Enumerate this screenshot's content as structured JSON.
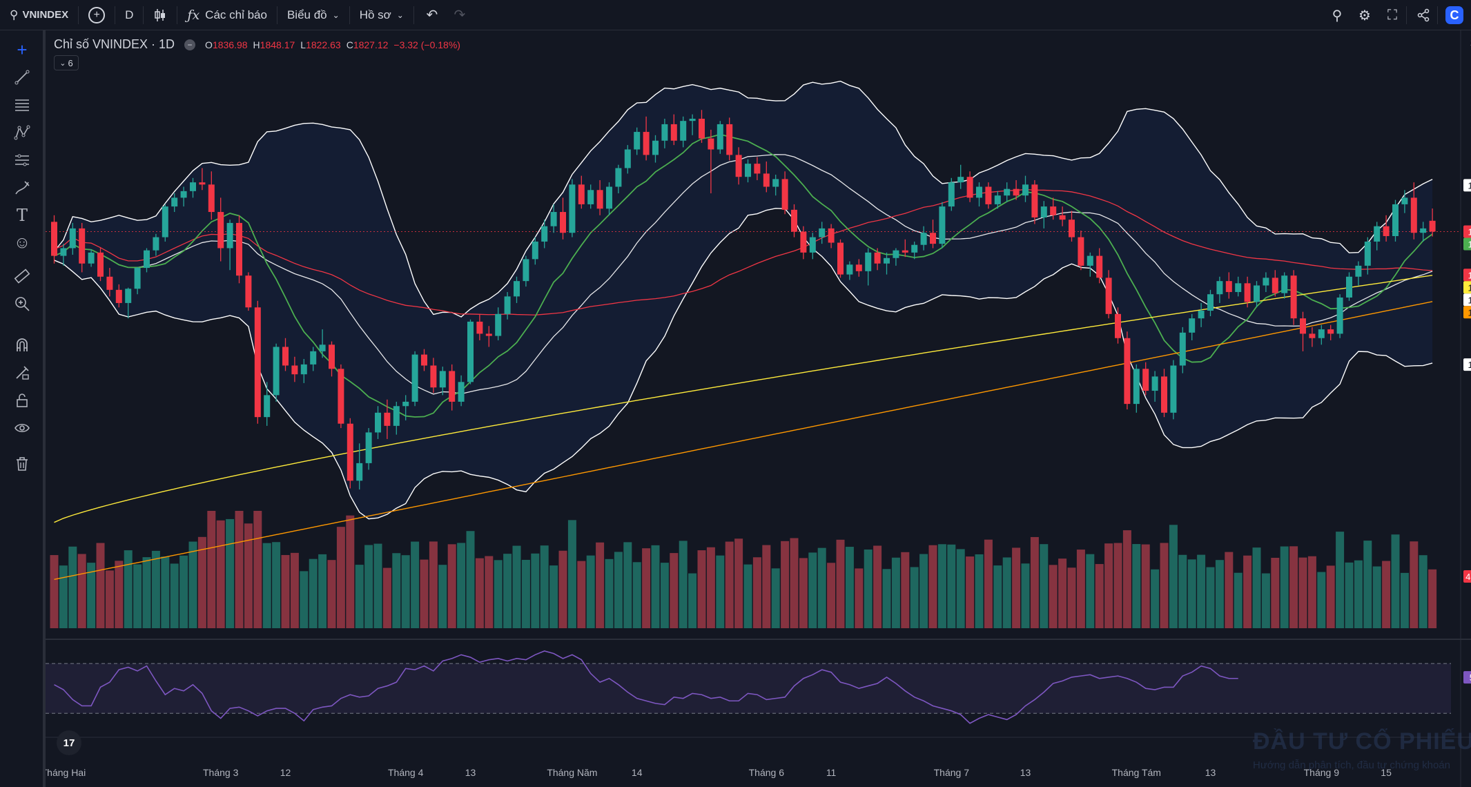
{
  "toolbar": {
    "symbol": "VNINDEX",
    "interval": "D",
    "indicators_label": "Các chỉ báo",
    "chart_menu_label": "Biểu đồ",
    "profile_label": "Hồ sơ"
  },
  "legend": {
    "title": "Chỉ số VNINDEX · 1D",
    "open_key": "O",
    "open_val": "1836.98",
    "high_key": "H",
    "high_val": "1848.17",
    "low_key": "L",
    "low_val": "1822.63",
    "close_key": "C",
    "close_val": "1827.12",
    "change": "−3.32 (−0.18%)",
    "collapse_count": "6"
  },
  "watermark": {
    "title": "ĐẦU TƯ CỔ PHIẾU",
    "subtitle": "Hướng dẫn phân tích, đầu tư chứng khoán"
  },
  "colors": {
    "up": "#26a69a",
    "down": "#f23645",
    "bg": "#131722",
    "ma_fast": "#4caf50",
    "ma_mid": "#f23645",
    "ma_slow": "#ffeb3b",
    "ma_long": "#ff9800",
    "band": "#ffffff",
    "rsi": "#7e57c2"
  },
  "icons": [
    "search-icon",
    "plus-circle-icon",
    "candles-icon",
    "fx-icon",
    "undo-icon",
    "redo-icon",
    "zoom-icon",
    "gear-icon",
    "fullscreen-icon",
    "share-icon",
    "crosshair-icon",
    "trendline-icon",
    "fib-icon",
    "pattern-icon",
    "measure-icon",
    "brush-icon",
    "text-icon",
    "emoji-icon",
    "ruler-icon",
    "zoom-in-icon",
    "magnet-icon",
    "lock-draw-icon",
    "lock-icon",
    "eye-icon",
    "trash-icon"
  ],
  "chart_data": {
    "type": "candlestick",
    "price_axis": {
      "ticks": [
        2000,
        1975,
        1950,
        1925,
        1900,
        1875,
        1850,
        1825,
        1800,
        1775,
        1750,
        1725,
        1700,
        1675,
        1650,
        1625,
        1600,
        1575,
        1550,
        1525,
        1500,
        1475
      ],
      "range": [
        1463,
        2003
      ]
    },
    "price_labels": [
      {
        "text": "1869.35",
        "value": 1869.35,
        "bg": "#ffffff",
        "fg": "#131722"
      },
      {
        "text": "1827.12",
        "value": 1827.12,
        "bg": "#f23645",
        "fg": "#ffffff"
      },
      {
        "text": "1822.52",
        "value": 1822.52,
        "bg": "#4caf50",
        "fg": "#ffffff"
      },
      {
        "text": "1787.59",
        "value": 1787.59,
        "bg": "#f23645",
        "fg": "#ffffff"
      },
      {
        "text": "1787.27",
        "value": 1787.27,
        "bg": "#ffeb3b",
        "fg": "#131722"
      },
      {
        "text": "1783.40",
        "value": 1783.4,
        "bg": "#ffffff",
        "fg": "#131722"
      },
      {
        "text": "1763.32",
        "value": 1763.32,
        "bg": "#ff9800",
        "fg": "#131722"
      },
      {
        "text": "1705.83",
        "value": 1705.83,
        "bg": "#ffffff",
        "fg": "#131722"
      }
    ],
    "volume_label": "467.329M",
    "rsi": {
      "ticks": [
        40,
        20
      ],
      "range": [
        13,
        85
      ],
      "upper": 70,
      "lower": 30,
      "value_label": "58.92",
      "values": [
        53,
        49,
        41,
        36,
        36,
        51,
        55,
        65,
        67,
        64,
        68,
        56,
        45,
        50,
        48,
        53,
        46,
        32,
        26,
        34,
        35,
        32,
        28,
        32,
        34,
        34,
        30,
        24,
        33,
        35,
        36,
        42,
        45,
        43,
        44,
        50,
        52,
        55,
        66,
        65,
        68,
        64,
        72,
        74,
        77,
        75,
        71,
        73,
        74,
        72,
        74,
        73,
        77,
        80,
        78,
        74,
        77,
        73,
        62,
        55,
        58,
        53,
        47,
        42,
        40,
        38,
        37,
        43,
        42,
        46,
        45,
        42,
        43,
        40,
        40,
        46,
        45,
        41,
        42,
        43,
        52,
        58,
        61,
        65,
        63,
        55,
        53,
        50,
        52,
        54,
        59,
        54,
        48,
        43,
        40,
        36,
        34,
        32,
        29,
        22,
        26,
        29,
        27,
        25,
        29,
        36,
        41,
        47,
        54,
        56,
        59,
        60,
        61,
        58,
        59,
        60,
        58,
        55,
        50,
        49,
        51,
        51,
        60,
        63,
        68,
        66,
        60,
        58,
        58
      ],
      "last": 58.92
    },
    "x_ticks": [
      {
        "label": "Tháng Hai",
        "index": 1
      },
      {
        "label": "Tháng 3",
        "index": 18
      },
      {
        "label": "12",
        "index": 25
      },
      {
        "label": "Tháng 4",
        "index": 38
      },
      {
        "label": "13",
        "index": 45
      },
      {
        "label": "Tháng Năm",
        "index": 56
      },
      {
        "label": "14",
        "index": 63
      },
      {
        "label": "Tháng 6",
        "index": 77
      },
      {
        "label": "11",
        "index": 84
      },
      {
        "label": "Tháng 7",
        "index": 97
      },
      {
        "label": "13",
        "index": 105
      },
      {
        "label": "Tháng Tám",
        "index": 117
      },
      {
        "label": "13",
        "index": 125
      },
      {
        "label": "Tháng 9",
        "index": 137
      },
      {
        "label": "15",
        "index": 144
      }
    ],
    "candles": [
      {
        "o": 1836,
        "h": 1842,
        "l": 1798,
        "c": 1805
      },
      {
        "o": 1805,
        "h": 1816,
        "l": 1796,
        "c": 1812
      },
      {
        "o": 1812,
        "h": 1835,
        "l": 1806,
        "c": 1830
      },
      {
        "o": 1830,
        "h": 1835,
        "l": 1790,
        "c": 1798
      },
      {
        "o": 1798,
        "h": 1811,
        "l": 1795,
        "c": 1808
      },
      {
        "o": 1808,
        "h": 1813,
        "l": 1782,
        "c": 1786
      },
      {
        "o": 1786,
        "h": 1794,
        "l": 1768,
        "c": 1774
      },
      {
        "o": 1774,
        "h": 1779,
        "l": 1758,
        "c": 1762
      },
      {
        "o": 1762,
        "h": 1776,
        "l": 1748,
        "c": 1775
      },
      {
        "o": 1775,
        "h": 1795,
        "l": 1770,
        "c": 1794
      },
      {
        "o": 1794,
        "h": 1812,
        "l": 1790,
        "c": 1810
      },
      {
        "o": 1810,
        "h": 1825,
        "l": 1805,
        "c": 1822
      },
      {
        "o": 1822,
        "h": 1852,
        "l": 1818,
        "c": 1850
      },
      {
        "o": 1850,
        "h": 1862,
        "l": 1845,
        "c": 1858
      },
      {
        "o": 1858,
        "h": 1868,
        "l": 1850,
        "c": 1864
      },
      {
        "o": 1864,
        "h": 1876,
        "l": 1858,
        "c": 1872
      },
      {
        "o": 1872,
        "h": 1885,
        "l": 1865,
        "c": 1870
      },
      {
        "o": 1870,
        "h": 1882,
        "l": 1838,
        "c": 1845
      },
      {
        "o": 1845,
        "h": 1858,
        "l": 1800,
        "c": 1812
      },
      {
        "o": 1812,
        "h": 1838,
        "l": 1792,
        "c": 1835
      },
      {
        "o": 1835,
        "h": 1842,
        "l": 1780,
        "c": 1787
      },
      {
        "o": 1787,
        "h": 1790,
        "l": 1755,
        "c": 1758
      },
      {
        "o": 1758,
        "h": 1764,
        "l": 1652,
        "c": 1658
      },
      {
        "o": 1658,
        "h": 1690,
        "l": 1650,
        "c": 1678
      },
      {
        "o": 1678,
        "h": 1725,
        "l": 1672,
        "c": 1722
      },
      {
        "o": 1722,
        "h": 1730,
        "l": 1700,
        "c": 1705
      },
      {
        "o": 1705,
        "h": 1713,
        "l": 1690,
        "c": 1697
      },
      {
        "o": 1697,
        "h": 1711,
        "l": 1689,
        "c": 1706
      },
      {
        "o": 1706,
        "h": 1722,
        "l": 1700,
        "c": 1718
      },
      {
        "o": 1718,
        "h": 1738,
        "l": 1712,
        "c": 1724
      },
      {
        "o": 1724,
        "h": 1727,
        "l": 1695,
        "c": 1702
      },
      {
        "o": 1702,
        "h": 1706,
        "l": 1648,
        "c": 1652
      },
      {
        "o": 1652,
        "h": 1657,
        "l": 1593,
        "c": 1600
      },
      {
        "o": 1600,
        "h": 1634,
        "l": 1592,
        "c": 1616
      },
      {
        "o": 1616,
        "h": 1648,
        "l": 1610,
        "c": 1644
      },
      {
        "o": 1644,
        "h": 1668,
        "l": 1638,
        "c": 1662
      },
      {
        "o": 1662,
        "h": 1674,
        "l": 1638,
        "c": 1650
      },
      {
        "o": 1650,
        "h": 1672,
        "l": 1642,
        "c": 1668
      },
      {
        "o": 1668,
        "h": 1678,
        "l": 1655,
        "c": 1672
      },
      {
        "o": 1672,
        "h": 1718,
        "l": 1668,
        "c": 1715
      },
      {
        "o": 1715,
        "h": 1720,
        "l": 1700,
        "c": 1705
      },
      {
        "o": 1705,
        "h": 1712,
        "l": 1680,
        "c": 1685
      },
      {
        "o": 1685,
        "h": 1704,
        "l": 1678,
        "c": 1700
      },
      {
        "o": 1700,
        "h": 1706,
        "l": 1664,
        "c": 1672
      },
      {
        "o": 1672,
        "h": 1696,
        "l": 1668,
        "c": 1690
      },
      {
        "o": 1690,
        "h": 1747,
        "l": 1688,
        "c": 1745
      },
      {
        "o": 1745,
        "h": 1752,
        "l": 1728,
        "c": 1734
      },
      {
        "o": 1734,
        "h": 1741,
        "l": 1722,
        "c": 1732
      },
      {
        "o": 1732,
        "h": 1758,
        "l": 1728,
        "c": 1752
      },
      {
        "o": 1752,
        "h": 1772,
        "l": 1747,
        "c": 1768
      },
      {
        "o": 1768,
        "h": 1786,
        "l": 1762,
        "c": 1782
      },
      {
        "o": 1782,
        "h": 1805,
        "l": 1777,
        "c": 1802
      },
      {
        "o": 1802,
        "h": 1822,
        "l": 1797,
        "c": 1818
      },
      {
        "o": 1818,
        "h": 1838,
        "l": 1812,
        "c": 1832
      },
      {
        "o": 1832,
        "h": 1852,
        "l": 1826,
        "c": 1845
      },
      {
        "o": 1845,
        "h": 1858,
        "l": 1820,
        "c": 1826
      },
      {
        "o": 1826,
        "h": 1875,
        "l": 1822,
        "c": 1870
      },
      {
        "o": 1870,
        "h": 1878,
        "l": 1848,
        "c": 1852
      },
      {
        "o": 1852,
        "h": 1870,
        "l": 1848,
        "c": 1865
      },
      {
        "o": 1865,
        "h": 1874,
        "l": 1842,
        "c": 1848
      },
      {
        "o": 1848,
        "h": 1872,
        "l": 1842,
        "c": 1868
      },
      {
        "o": 1868,
        "h": 1888,
        "l": 1862,
        "c": 1885
      },
      {
        "o": 1885,
        "h": 1906,
        "l": 1880,
        "c": 1902
      },
      {
        "o": 1902,
        "h": 1922,
        "l": 1897,
        "c": 1918
      },
      {
        "o": 1918,
        "h": 1932,
        "l": 1892,
        "c": 1897
      },
      {
        "o": 1897,
        "h": 1915,
        "l": 1890,
        "c": 1910
      },
      {
        "o": 1910,
        "h": 1930,
        "l": 1903,
        "c": 1925
      },
      {
        "o": 1925,
        "h": 1934,
        "l": 1906,
        "c": 1910
      },
      {
        "o": 1910,
        "h": 1932,
        "l": 1904,
        "c": 1928
      },
      {
        "o": 1928,
        "h": 1934,
        "l": 1915,
        "c": 1930
      },
      {
        "o": 1930,
        "h": 1938,
        "l": 1908,
        "c": 1912
      },
      {
        "o": 1912,
        "h": 1920,
        "l": 1862,
        "c": 1902
      },
      {
        "o": 1902,
        "h": 1928,
        "l": 1898,
        "c": 1925
      },
      {
        "o": 1925,
        "h": 1931,
        "l": 1892,
        "c": 1897
      },
      {
        "o": 1897,
        "h": 1904,
        "l": 1870,
        "c": 1877
      },
      {
        "o": 1877,
        "h": 1893,
        "l": 1872,
        "c": 1889
      },
      {
        "o": 1889,
        "h": 1895,
        "l": 1874,
        "c": 1880
      },
      {
        "o": 1880,
        "h": 1891,
        "l": 1863,
        "c": 1868
      },
      {
        "o": 1868,
        "h": 1879,
        "l": 1860,
        "c": 1875
      },
      {
        "o": 1875,
        "h": 1882,
        "l": 1843,
        "c": 1847
      },
      {
        "o": 1847,
        "h": 1852,
        "l": 1822,
        "c": 1827
      },
      {
        "o": 1827,
        "h": 1832,
        "l": 1802,
        "c": 1808
      },
      {
        "o": 1808,
        "h": 1826,
        "l": 1802,
        "c": 1822
      },
      {
        "o": 1822,
        "h": 1836,
        "l": 1816,
        "c": 1830
      },
      {
        "o": 1830,
        "h": 1834,
        "l": 1812,
        "c": 1817
      },
      {
        "o": 1817,
        "h": 1820,
        "l": 1785,
        "c": 1788
      },
      {
        "o": 1788,
        "h": 1800,
        "l": 1783,
        "c": 1797
      },
      {
        "o": 1797,
        "h": 1802,
        "l": 1786,
        "c": 1791
      },
      {
        "o": 1791,
        "h": 1812,
        "l": 1778,
        "c": 1808
      },
      {
        "o": 1808,
        "h": 1812,
        "l": 1792,
        "c": 1798
      },
      {
        "o": 1798,
        "h": 1808,
        "l": 1788,
        "c": 1803
      },
      {
        "o": 1803,
        "h": 1812,
        "l": 1796,
        "c": 1810
      },
      {
        "o": 1810,
        "h": 1820,
        "l": 1804,
        "c": 1808
      },
      {
        "o": 1808,
        "h": 1818,
        "l": 1802,
        "c": 1815
      },
      {
        "o": 1815,
        "h": 1832,
        "l": 1810,
        "c": 1826
      },
      {
        "o": 1826,
        "h": 1838,
        "l": 1812,
        "c": 1816
      },
      {
        "o": 1816,
        "h": 1854,
        "l": 1812,
        "c": 1850
      },
      {
        "o": 1850,
        "h": 1876,
        "l": 1846,
        "c": 1872
      },
      {
        "o": 1872,
        "h": 1888,
        "l": 1866,
        "c": 1877
      },
      {
        "o": 1877,
        "h": 1882,
        "l": 1854,
        "c": 1858
      },
      {
        "o": 1858,
        "h": 1872,
        "l": 1850,
        "c": 1868
      },
      {
        "o": 1868,
        "h": 1872,
        "l": 1848,
        "c": 1852
      },
      {
        "o": 1852,
        "h": 1864,
        "l": 1848,
        "c": 1860
      },
      {
        "o": 1860,
        "h": 1872,
        "l": 1854,
        "c": 1866
      },
      {
        "o": 1866,
        "h": 1874,
        "l": 1856,
        "c": 1860
      },
      {
        "o": 1860,
        "h": 1878,
        "l": 1854,
        "c": 1870
      },
      {
        "o": 1870,
        "h": 1874,
        "l": 1834,
        "c": 1840
      },
      {
        "o": 1840,
        "h": 1855,
        "l": 1830,
        "c": 1850
      },
      {
        "o": 1850,
        "h": 1858,
        "l": 1838,
        "c": 1842
      },
      {
        "o": 1842,
        "h": 1850,
        "l": 1832,
        "c": 1838
      },
      {
        "o": 1838,
        "h": 1846,
        "l": 1818,
        "c": 1822
      },
      {
        "o": 1822,
        "h": 1828,
        "l": 1792,
        "c": 1796
      },
      {
        "o": 1796,
        "h": 1808,
        "l": 1786,
        "c": 1805
      },
      {
        "o": 1805,
        "h": 1812,
        "l": 1780,
        "c": 1785
      },
      {
        "o": 1785,
        "h": 1792,
        "l": 1748,
        "c": 1752
      },
      {
        "o": 1752,
        "h": 1758,
        "l": 1725,
        "c": 1730
      },
      {
        "o": 1730,
        "h": 1736,
        "l": 1665,
        "c": 1670
      },
      {
        "o": 1670,
        "h": 1706,
        "l": 1662,
        "c": 1702
      },
      {
        "o": 1702,
        "h": 1708,
        "l": 1678,
        "c": 1682
      },
      {
        "o": 1682,
        "h": 1700,
        "l": 1672,
        "c": 1695
      },
      {
        "o": 1695,
        "h": 1702,
        "l": 1658,
        "c": 1662
      },
      {
        "o": 1662,
        "h": 1710,
        "l": 1656,
        "c": 1705
      },
      {
        "o": 1705,
        "h": 1740,
        "l": 1698,
        "c": 1735
      },
      {
        "o": 1735,
        "h": 1752,
        "l": 1728,
        "c": 1748
      },
      {
        "o": 1748,
        "h": 1762,
        "l": 1740,
        "c": 1755
      },
      {
        "o": 1755,
        "h": 1774,
        "l": 1750,
        "c": 1770
      },
      {
        "o": 1770,
        "h": 1786,
        "l": 1762,
        "c": 1782
      },
      {
        "o": 1782,
        "h": 1790,
        "l": 1766,
        "c": 1772
      },
      {
        "o": 1772,
        "h": 1786,
        "l": 1768,
        "c": 1780
      },
      {
        "o": 1780,
        "h": 1786,
        "l": 1758,
        "c": 1763
      },
      {
        "o": 1763,
        "h": 1782,
        "l": 1758,
        "c": 1778
      },
      {
        "o": 1778,
        "h": 1790,
        "l": 1772,
        "c": 1785
      },
      {
        "o": 1785,
        "h": 1792,
        "l": 1768,
        "c": 1771
      },
      {
        "o": 1771,
        "h": 1790,
        "l": 1766,
        "c": 1787
      },
      {
        "o": 1787,
        "h": 1792,
        "l": 1742,
        "c": 1748
      },
      {
        "o": 1748,
        "h": 1754,
        "l": 1718,
        "c": 1734
      },
      {
        "o": 1734,
        "h": 1740,
        "l": 1722,
        "c": 1730
      },
      {
        "o": 1730,
        "h": 1742,
        "l": 1724,
        "c": 1738
      },
      {
        "o": 1738,
        "h": 1742,
        "l": 1728,
        "c": 1734
      },
      {
        "o": 1734,
        "h": 1770,
        "l": 1730,
        "c": 1767
      },
      {
        "o": 1767,
        "h": 1790,
        "l": 1764,
        "c": 1786
      },
      {
        "o": 1786,
        "h": 1800,
        "l": 1778,
        "c": 1796
      },
      {
        "o": 1796,
        "h": 1822,
        "l": 1788,
        "c": 1818
      },
      {
        "o": 1818,
        "h": 1836,
        "l": 1810,
        "c": 1832
      },
      {
        "o": 1832,
        "h": 1842,
        "l": 1818,
        "c": 1823
      },
      {
        "o": 1823,
        "h": 1856,
        "l": 1818,
        "c": 1852
      },
      {
        "o": 1852,
        "h": 1865,
        "l": 1844,
        "c": 1858
      },
      {
        "o": 1858,
        "h": 1872,
        "l": 1820,
        "c": 1826
      },
      {
        "o": 1826,
        "h": 1836,
        "l": 1818,
        "c": 1830
      },
      {
        "o": 1836.98,
        "h": 1848.17,
        "l": 1822.63,
        "c": 1827.12
      }
    ],
    "volume_range": [
      0,
      560
    ]
  }
}
